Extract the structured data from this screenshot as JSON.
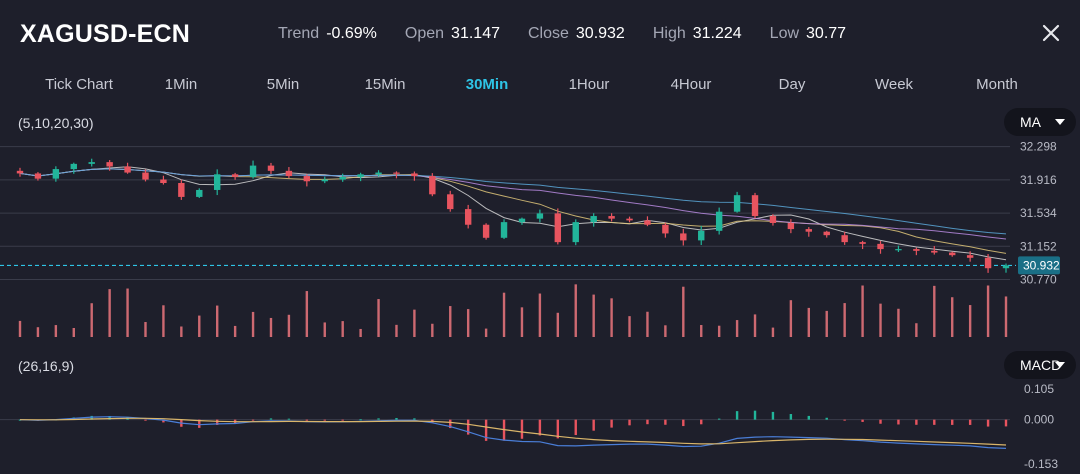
{
  "header": {
    "symbol": "XAGUSD-ECN",
    "stats": [
      {
        "label": "Trend",
        "value": "-0.69%"
      },
      {
        "label": "Open",
        "value": "31.147"
      },
      {
        "label": "Close",
        "value": "30.932"
      },
      {
        "label": "High",
        "value": "31.224"
      },
      {
        "label": "Low",
        "value": "30.77"
      }
    ]
  },
  "timeframes": [
    "Tick Chart",
    "1Min",
    "5Min",
    "15Min",
    "30Min",
    "1Hour",
    "4Hour",
    "Day",
    "Week",
    "Month"
  ],
  "active_timeframe": "30Min",
  "main_indicator": {
    "params": "(5,10,20,30)",
    "selector": "MA"
  },
  "sub_indicator": {
    "params": "(26,16,9)",
    "selector": "MACD"
  },
  "icons": {
    "close": "close-icon",
    "dropdown": "chevron-down-icon"
  },
  "colors": {
    "up": "#22b59a",
    "down": "#e8545f",
    "accent": "#2ec4e6",
    "background": "#1e1f2b"
  },
  "chart_data": [
    {
      "type": "candlestick",
      "title": "XAGUSD-ECN 30Min",
      "price_axis_ticks": [
        32.298,
        31.916,
        31.534,
        31.152,
        30.77
      ],
      "last_price": 30.932,
      "ylim": [
        30.73,
        32.34
      ],
      "moving_averages": [
        5,
        10,
        20,
        30
      ],
      "closes": [
        31.99,
        31.93,
        32.04,
        32.1,
        32.12,
        32.07,
        32.0,
        31.92,
        31.88,
        31.72,
        31.8,
        31.98,
        31.95,
        32.08,
        32.02,
        31.96,
        31.9,
        31.92,
        31.95,
        31.98,
        32.0,
        31.99,
        31.96,
        31.75,
        31.58,
        31.4,
        31.25,
        31.43,
        31.47,
        31.53,
        31.2,
        31.43,
        31.5,
        31.47,
        31.45,
        31.4,
        31.3,
        31.22,
        31.33,
        31.55,
        31.74,
        31.5,
        31.42,
        31.35,
        31.32,
        31.28,
        31.2,
        31.18,
        31.12,
        31.12,
        31.1,
        31.08,
        31.05,
        31.02,
        30.9,
        30.932
      ],
      "volume_indicator": "bars",
      "grid": true
    },
    {
      "type": "macd",
      "params": [
        26,
        16,
        9
      ],
      "axis_ticks": [
        0.105,
        0.0,
        -0.153
      ],
      "ylim": [
        -0.16,
        0.13
      ]
    }
  ]
}
